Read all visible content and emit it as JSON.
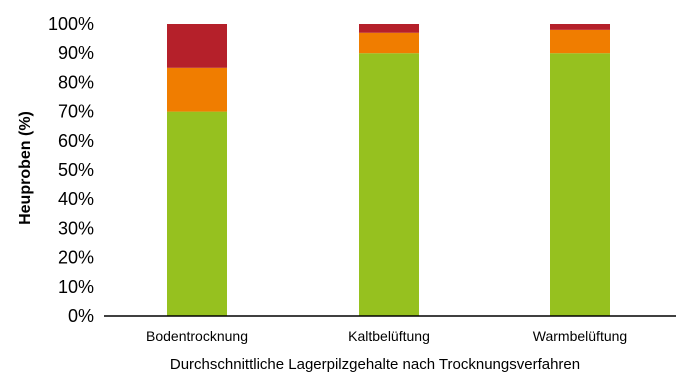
{
  "chart_data": {
    "type": "bar",
    "stacked": true,
    "title": "",
    "xlabel": "Durchschnittliche Lagerpilzgehalte nach Trocknungsverfahren",
    "ylabel": "Heuproben (%)",
    "ylim": [
      0,
      100
    ],
    "yticks": [
      "0%",
      "10%",
      "20%",
      "30%",
      "40%",
      "50%",
      "60%",
      "70%",
      "80%",
      "90%",
      "100%"
    ],
    "grid": false,
    "legend": "none",
    "categories": [
      "Bodentrocknung",
      "Kaltbelüftung",
      "Warmbelüftung"
    ],
    "series": [
      {
        "color": "#96c11f",
        "values": [
          70,
          90,
          90
        ]
      },
      {
        "color": "#f07d00",
        "values": [
          15,
          7,
          8
        ]
      },
      {
        "color": "#b5202a",
        "values": [
          15,
          3,
          2
        ]
      }
    ]
  }
}
